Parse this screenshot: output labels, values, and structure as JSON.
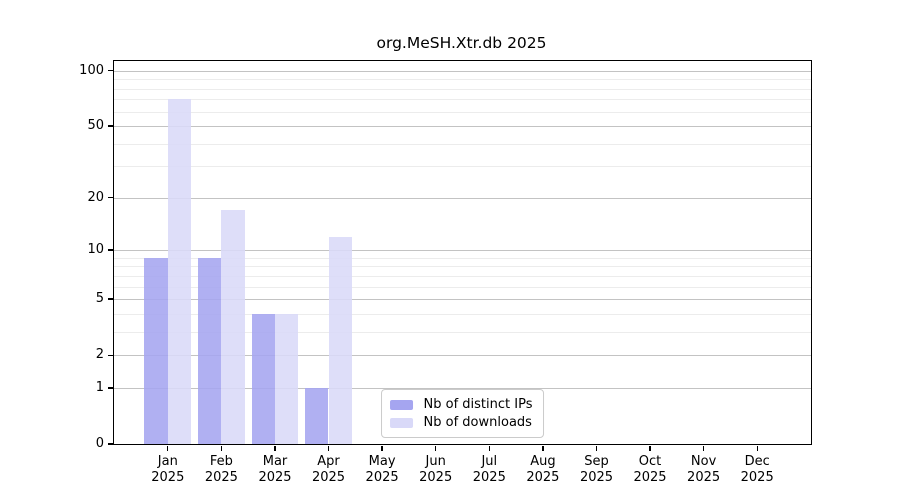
{
  "chart_data": {
    "type": "bar",
    "title": "org.MeSH.Xtr.db 2025",
    "categories": [
      "Jan",
      "Feb",
      "Mar",
      "Apr",
      "May",
      "Jun",
      "Jul",
      "Aug",
      "Sep",
      "Oct",
      "Nov",
      "Dec"
    ],
    "year_label": "2025",
    "series": [
      {
        "name": "Nb of distinct IPs",
        "color": "#a5a5f0",
        "values": [
          9,
          9,
          4,
          1,
          0,
          0,
          0,
          0,
          0,
          0,
          0,
          0
        ]
      },
      {
        "name": "Nb of downloads",
        "color": "#d9d9f8",
        "values": [
          70,
          17,
          4,
          12,
          0,
          0,
          0,
          0,
          0,
          0,
          0,
          0
        ]
      }
    ],
    "yticks": [
      0,
      1,
      2,
      5,
      10,
      20,
      50,
      100
    ],
    "minor_gridlines": [
      1,
      2,
      3,
      4,
      5,
      6,
      7,
      8,
      9,
      10,
      20,
      30,
      40,
      50,
      60,
      70,
      80,
      90,
      100
    ],
    "scale": "log10(1+y)",
    "ylim": [
      0,
      113
    ],
    "grid": true,
    "legend_position": "lower center",
    "xlabel": "",
    "ylabel": "",
    "colors": {
      "frame": "#000000",
      "grid_major": "#c3c3c3",
      "grid_minor": "#ececec",
      "background": "#ffffff",
      "text": "#000000"
    }
  }
}
